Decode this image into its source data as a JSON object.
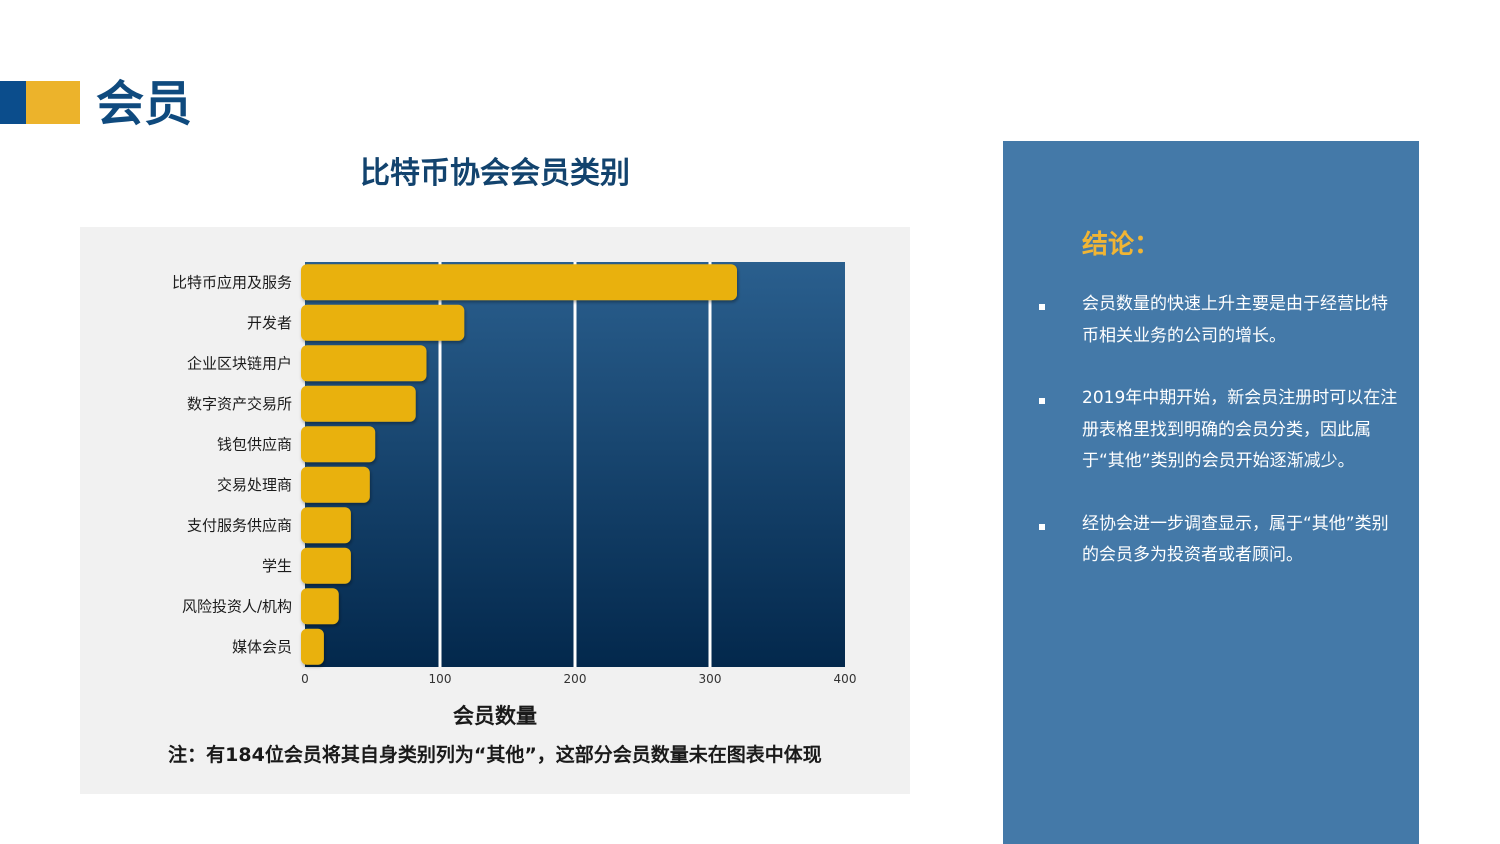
{
  "header": {
    "title": "会员"
  },
  "chart_data": {
    "type": "bar",
    "orientation": "horizontal",
    "title": "比特币协会会员类别",
    "categories": [
      "比特币应用及服务",
      "开发者",
      "企业区块链用户",
      "数字资产交易所",
      "钱包供应商",
      "交易处理商",
      "支付服务供应商",
      "学生",
      "风险投资人/机构",
      "媒体会员"
    ],
    "values": [
      320,
      118,
      90,
      82,
      52,
      48,
      34,
      34,
      25,
      14
    ],
    "xlabel": "会员数量",
    "ylabel": "",
    "xlim": [
      0,
      400
    ],
    "xticks": [
      0,
      100,
      200,
      300,
      400
    ],
    "grid": true,
    "note": "注：有184位会员将其自身类别列为“其他”，这部分会员数量未在图表中体现",
    "colors": {
      "bar": "#e9b10f",
      "plot_top": "#2a5f8e",
      "plot_bottom": "#03284c",
      "grid": "#ffffff"
    }
  },
  "conclusion": {
    "title": "结论：",
    "items": [
      "会员数量的快速上升主要是由于经营比特币相关业务的公司的增长。",
      "2019年中期开始，新会员注册时可以在注册表格里找到明确的会员分类，因此属于“其他”类别的会员开始逐渐减少。",
      "经协会进一步调查显示，属于“其他”类别的会员多为投资者或者顾问。"
    ]
  }
}
